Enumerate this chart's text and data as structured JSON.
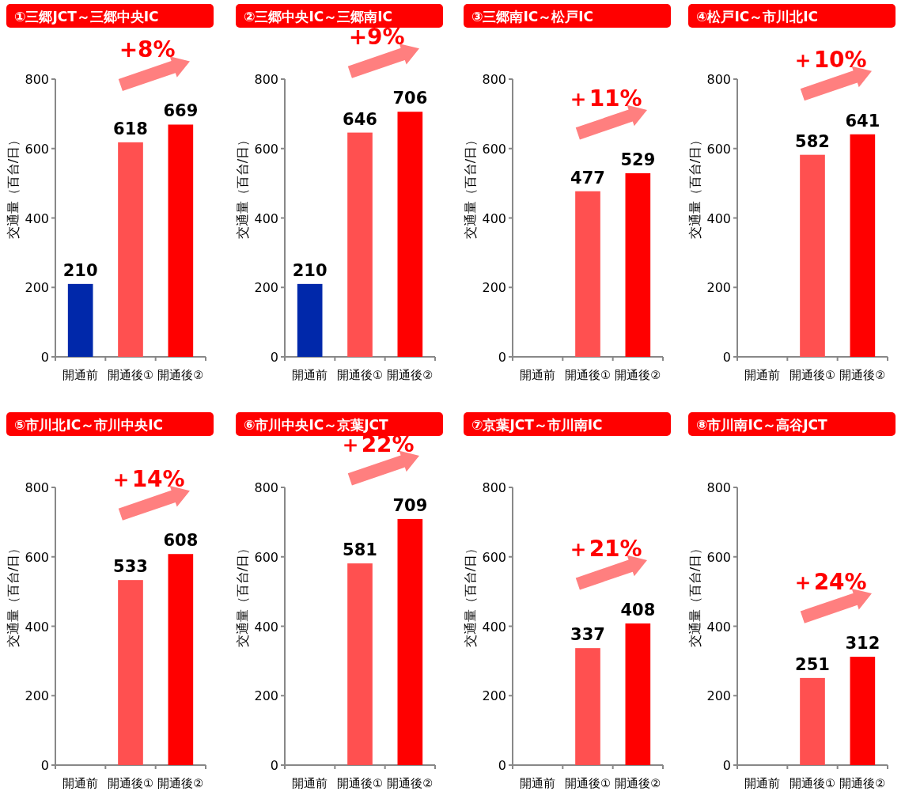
{
  "chart_data": [
    {
      "type": "bar",
      "title": "①三郷JCT～三郷中央IC",
      "ylabel": "交通量（百台/日）",
      "categories": [
        "開通前",
        "開通後①",
        "開通後②"
      ],
      "values": [
        210,
        618,
        669
      ],
      "colors": [
        "#0028aa",
        "#ff5050",
        "#ff0000"
      ],
      "ylim": [
        0,
        800
      ],
      "yticks": [
        0,
        200,
        400,
        600,
        800
      ],
      "data_labels": true,
      "annotations": [
        "+8%"
      ]
    },
    {
      "type": "bar",
      "title": "②三郷中央IC～三郷南IC",
      "ylabel": "交通量（百台/日）",
      "categories": [
        "開通前",
        "開通後①",
        "開通後②"
      ],
      "values": [
        210,
        646,
        706
      ],
      "colors": [
        "#0028aa",
        "#ff5050",
        "#ff0000"
      ],
      "ylim": [
        0,
        800
      ],
      "yticks": [
        0,
        200,
        400,
        600,
        800
      ],
      "data_labels": true,
      "annotations": [
        "+9%"
      ]
    },
    {
      "type": "bar",
      "title": "③三郷南IC～松戸IC",
      "ylabel": "交通量（百台/日）",
      "categories": [
        "開通前",
        "開通後①",
        "開通後②"
      ],
      "values": [
        null,
        477,
        529
      ],
      "colors": [
        null,
        "#ff5050",
        "#ff0000"
      ],
      "ylim": [
        0,
        800
      ],
      "yticks": [
        0,
        200,
        400,
        600,
        800
      ],
      "data_labels": true,
      "annotations": [
        "＋11%"
      ]
    },
    {
      "type": "bar",
      "title": "④松戸IC～市川北IC",
      "ylabel": "交通量（百台/日）",
      "categories": [
        "開通前",
        "開通後①",
        "開通後②"
      ],
      "values": [
        null,
        582,
        641
      ],
      "colors": [
        null,
        "#ff5050",
        "#ff0000"
      ],
      "ylim": [
        0,
        800
      ],
      "yticks": [
        0,
        200,
        400,
        600,
        800
      ],
      "data_labels": true,
      "annotations": [
        "＋10%"
      ]
    },
    {
      "type": "bar",
      "title": "⑤市川北IC～市川中央IC",
      "ylabel": "交通量（百台/日）",
      "categories": [
        "開通前",
        "開通後①",
        "開通後②"
      ],
      "values": [
        null,
        533,
        608
      ],
      "colors": [
        null,
        "#ff5050",
        "#ff0000"
      ],
      "ylim": [
        0,
        800
      ],
      "yticks": [
        0,
        200,
        400,
        600,
        800
      ],
      "data_labels": true,
      "annotations": [
        "＋14%"
      ]
    },
    {
      "type": "bar",
      "title": "⑥市川中央IC～京葉JCT",
      "ylabel": "交通量（百台/日）",
      "categories": [
        "開通前",
        "開通後①",
        "開通後②"
      ],
      "values": [
        null,
        581,
        709
      ],
      "colors": [
        null,
        "#ff5050",
        "#ff0000"
      ],
      "ylim": [
        0,
        800
      ],
      "yticks": [
        0,
        200,
        400,
        600,
        800
      ],
      "data_labels": true,
      "annotations": [
        "＋22%"
      ]
    },
    {
      "type": "bar",
      "title": "⑦京葉JCT～市川南IC",
      "ylabel": "交通量（百台/日）",
      "categories": [
        "開通前",
        "開通後①",
        "開通後②"
      ],
      "values": [
        null,
        337,
        408
      ],
      "colors": [
        null,
        "#ff5050",
        "#ff0000"
      ],
      "ylim": [
        0,
        800
      ],
      "yticks": [
        0,
        200,
        400,
        600,
        800
      ],
      "data_labels": true,
      "annotations": [
        "＋21%"
      ]
    },
    {
      "type": "bar",
      "title": "⑧市川南IC～高谷JCT",
      "ylabel": "交通量（百台/日）",
      "categories": [
        "開通前",
        "開通後①",
        "開通後②"
      ],
      "values": [
        null,
        251,
        312
      ],
      "colors": [
        null,
        "#ff5050",
        "#ff0000"
      ],
      "ylim": [
        0,
        800
      ],
      "yticks": [
        0,
        200,
        400,
        600,
        800
      ],
      "data_labels": true,
      "annotations": [
        "＋24%"
      ]
    }
  ]
}
